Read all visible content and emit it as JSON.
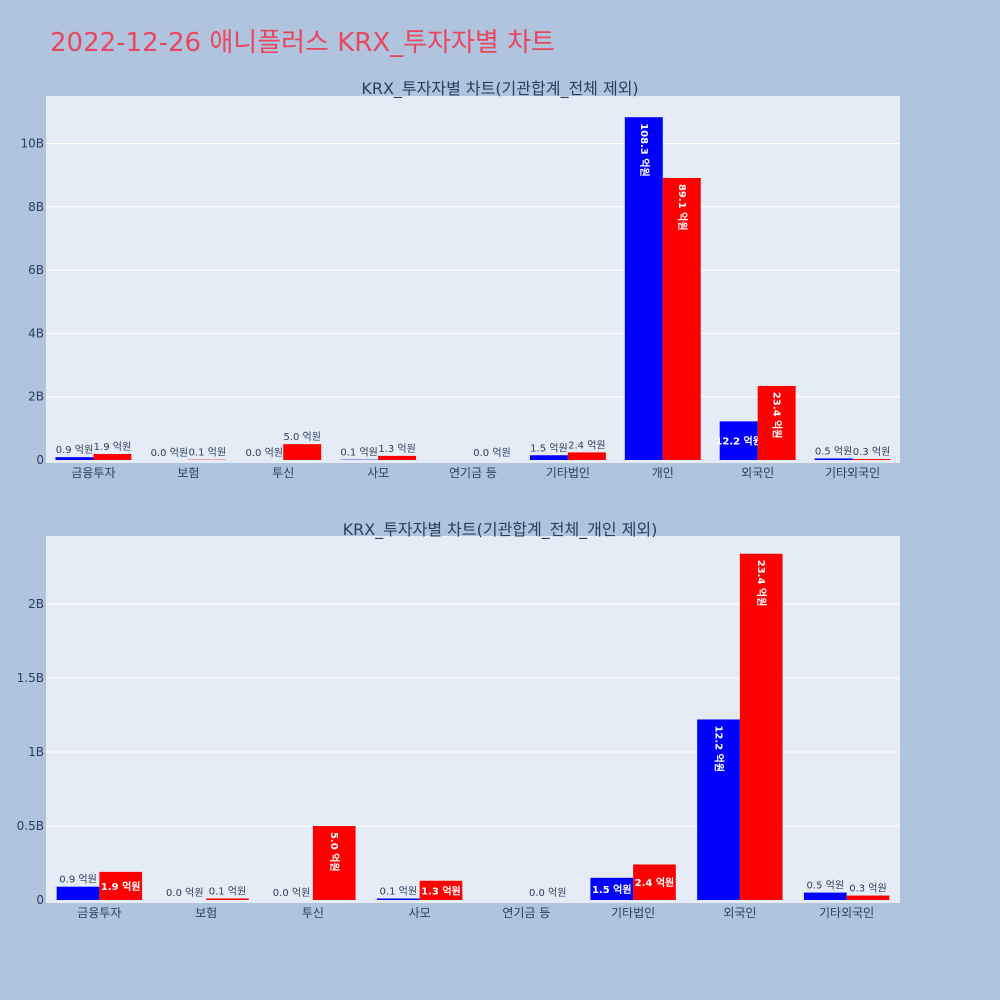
{
  "page_title": "2022-12-26 애니플러스 KRX_투자자별 차트",
  "colors": {
    "buy": "#0000ff",
    "sell": "#ff0000",
    "plot_bg": "#e5ecf6",
    "page_bg": "#b0c4de",
    "title": "#e8475f",
    "text": "#2a3f5f"
  },
  "chart_data": [
    {
      "type": "bar",
      "title": "KRX_투자자별 차트(기관합계_전체 제외)",
      "categories": [
        "금융투자",
        "보험",
        "투신",
        "사모",
        "연기금 등",
        "기타법인",
        "개인",
        "외국인",
        "기타외국인"
      ],
      "ylim": [
        0,
        11.5
      ],
      "yticks": [
        0,
        2,
        4,
        6,
        8,
        10
      ],
      "ytick_labels": [
        "0",
        "2B",
        "4B",
        "6B",
        "8B",
        "10B"
      ],
      "grid": true,
      "series": [
        {
          "color": "#0000ff",
          "values": [
            0.09,
            0.0,
            0.0,
            0.01,
            null,
            0.15,
            10.83,
            1.22,
            0.05
          ],
          "labels": [
            "0.9 억원",
            "0.0 억원",
            "0.0 억원",
            "0.1 억원",
            "",
            "1.5 억원",
            "108.3 억원",
            "12.2 억원",
            "0.5 억원"
          ]
        },
        {
          "color": "#ff0000",
          "values": [
            0.19,
            0.01,
            0.5,
            0.13,
            0.0,
            0.24,
            8.91,
            2.34,
            0.03
          ],
          "labels": [
            "1.9 억원",
            "0.1 억원",
            "5.0 억원",
            "1.3 억원",
            "0.0 억원",
            "2.4 억원",
            "89.1 억원",
            "23.4 억원",
            "0.3 억원"
          ]
        }
      ]
    },
    {
      "type": "bar",
      "title": "KRX_투자자별 차트(기관합계_전체_개인 제외)",
      "categories": [
        "금융투자",
        "보험",
        "투신",
        "사모",
        "연기금 등",
        "기타법인",
        "외국인",
        "기타외국인"
      ],
      "ylim": [
        0,
        2.46
      ],
      "yticks": [
        0,
        0.5,
        1,
        1.5,
        2
      ],
      "ytick_labels": [
        "0",
        "0.5B",
        "1B",
        "1.5B",
        "2B"
      ],
      "grid": true,
      "series": [
        {
          "color": "#0000ff",
          "values": [
            0.09,
            0.0,
            0.0,
            0.01,
            null,
            0.15,
            1.22,
            0.05
          ],
          "labels": [
            "0.9 억원",
            "0.0 억원",
            "0.0 억원",
            "0.1 억원",
            "",
            "1.5 억원",
            "12.2 억원",
            "0.5 억원"
          ]
        },
        {
          "color": "#ff0000",
          "values": [
            0.19,
            0.01,
            0.5,
            0.13,
            0.0,
            0.24,
            2.34,
            0.03
          ],
          "labels": [
            "1.9 억원",
            "0.1 억원",
            "5.0 억원",
            "1.3 억원",
            "0.0 억원",
            "2.4 억원",
            "23.4 억원",
            "0.3 억원"
          ]
        }
      ]
    }
  ]
}
